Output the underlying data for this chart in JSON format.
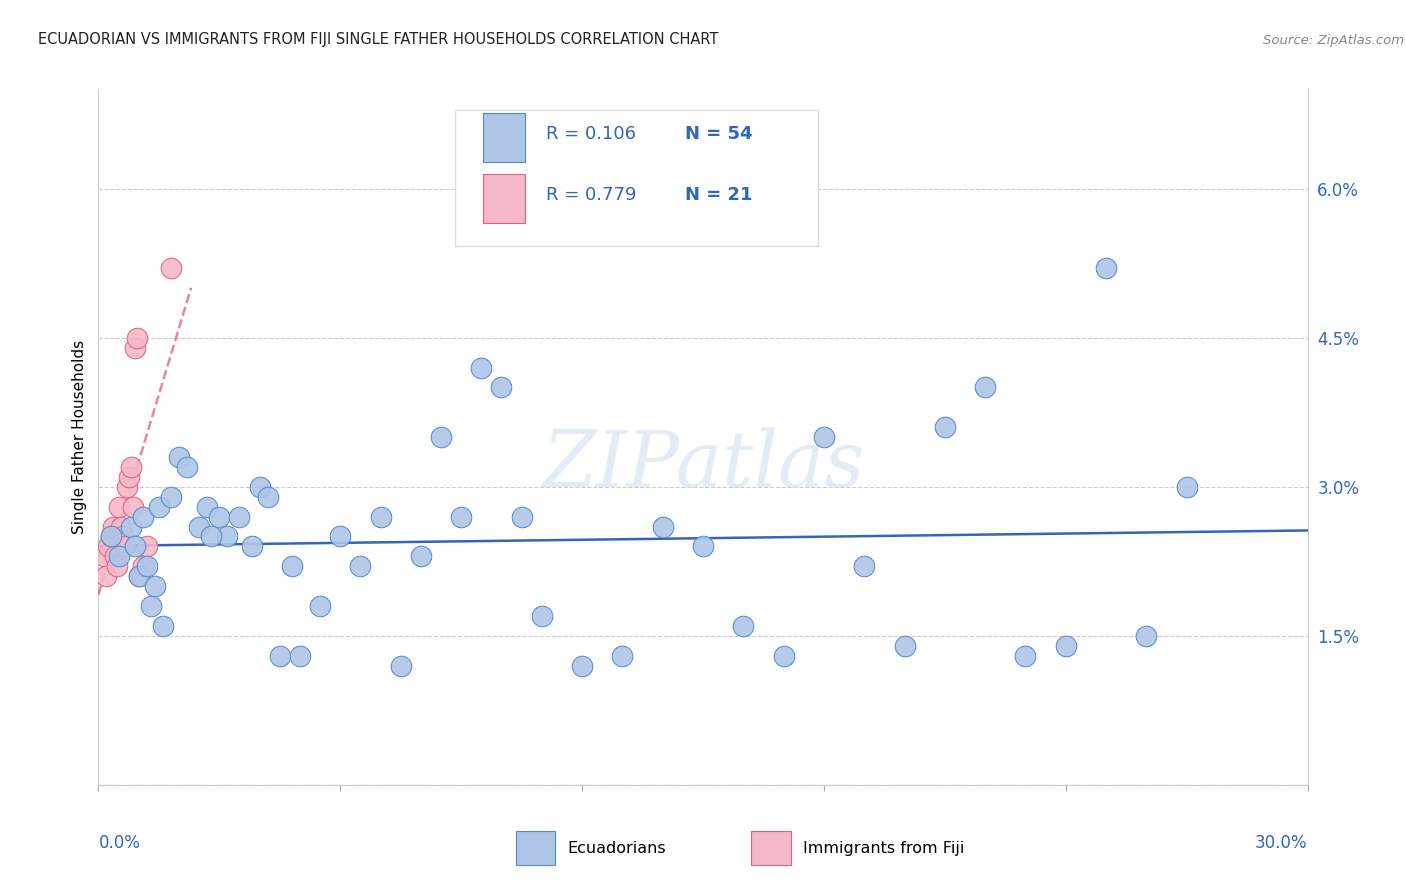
{
  "title": "ECUADORIAN VS IMMIGRANTS FROM FIJI SINGLE FATHER HOUSEHOLDS CORRELATION CHART",
  "source": "Source: ZipAtlas.com",
  "ylabel": "Single Father Households",
  "y_ticks": [
    0.0,
    1.5,
    3.0,
    4.5,
    6.0
  ],
  "x_min": 0.0,
  "x_max": 30.0,
  "y_min": 0.0,
  "y_max": 7.0,
  "legend_label1": "Ecuadorians",
  "legend_label2": "Immigrants from Fiji",
  "r1": "0.106",
  "n1": "54",
  "r2": "0.779",
  "n2": "21",
  "blue_color": "#aec6e8",
  "pink_color": "#f4b8c8",
  "blue_edge_color": "#5588cc",
  "pink_edge_color": "#e06080",
  "blue_line_color": "#3366bb",
  "pink_line_color": "#e05070",
  "watermark": "ZIPatlas",
  "blue_x": [
    0.3,
    0.5,
    0.8,
    0.9,
    1.0,
    1.1,
    1.2,
    1.3,
    1.5,
    1.6,
    1.8,
    2.0,
    2.2,
    2.5,
    2.7,
    3.0,
    3.2,
    3.5,
    4.0,
    4.2,
    4.5,
    5.0,
    5.5,
    6.0,
    6.5,
    7.0,
    7.5,
    8.0,
    8.5,
    9.0,
    9.5,
    10.0,
    10.5,
    11.0,
    12.0,
    13.0,
    14.0,
    15.0,
    16.0,
    17.0,
    18.0,
    19.0,
    20.0,
    21.0,
    22.0,
    23.0,
    24.0,
    25.0,
    26.0,
    27.0,
    3.8,
    4.8,
    2.8,
    1.4
  ],
  "blue_y": [
    2.5,
    2.3,
    2.6,
    2.4,
    2.1,
    2.7,
    2.2,
    1.8,
    2.8,
    1.6,
    2.9,
    3.3,
    3.2,
    2.6,
    2.8,
    2.7,
    2.5,
    2.7,
    3.0,
    2.9,
    1.3,
    1.3,
    1.8,
    2.5,
    2.2,
    2.7,
    1.2,
    2.3,
    3.5,
    2.7,
    4.2,
    4.0,
    2.7,
    1.7,
    1.2,
    1.3,
    2.6,
    2.4,
    1.6,
    1.3,
    3.5,
    2.2,
    1.4,
    3.6,
    4.0,
    1.3,
    1.4,
    5.2,
    1.5,
    3.0,
    2.4,
    2.2,
    2.5,
    2.0
  ],
  "pink_x": [
    0.15,
    0.2,
    0.25,
    0.3,
    0.35,
    0.4,
    0.45,
    0.5,
    0.55,
    0.6,
    0.65,
    0.7,
    0.75,
    0.8,
    0.85,
    0.9,
    0.95,
    1.0,
    1.1,
    1.2,
    1.8
  ],
  "pink_y": [
    2.3,
    2.1,
    2.4,
    2.5,
    2.6,
    2.3,
    2.2,
    2.8,
    2.6,
    2.5,
    2.4,
    3.0,
    3.1,
    3.2,
    2.8,
    4.4,
    4.5,
    2.1,
    2.2,
    2.4,
    5.2
  ]
}
